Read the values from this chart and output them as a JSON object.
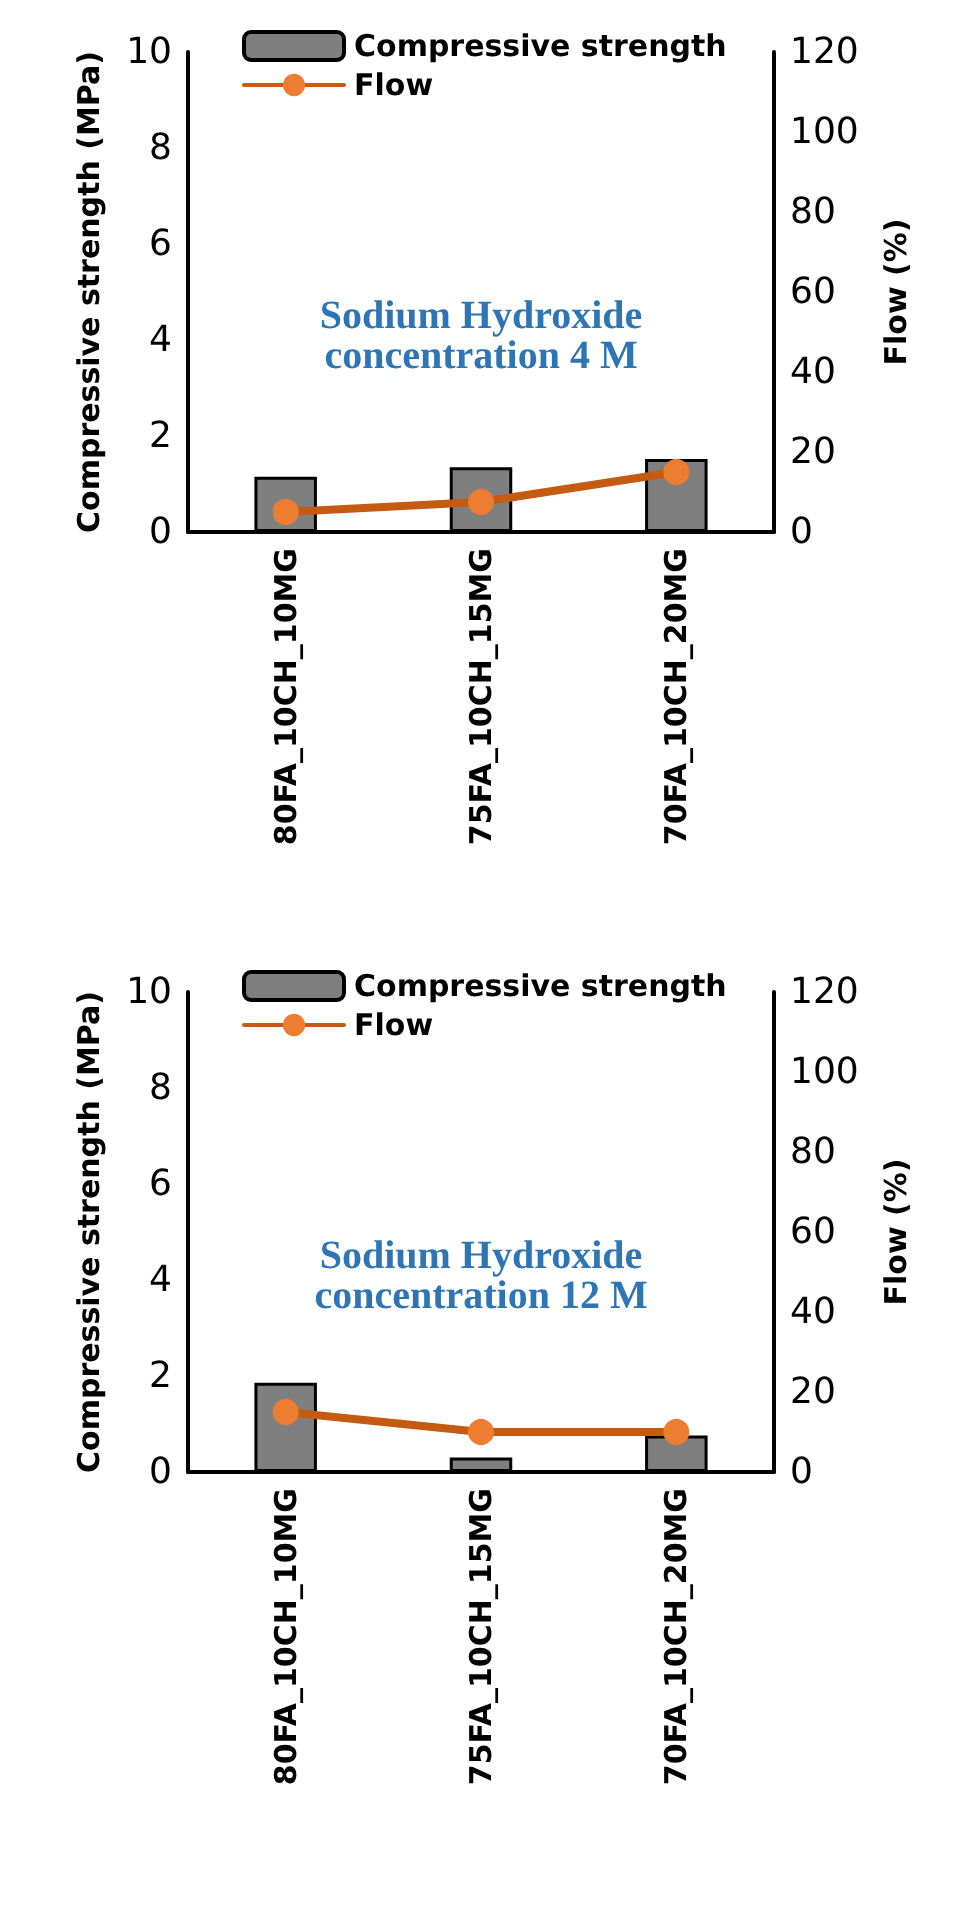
{
  "chart_data": [
    {
      "type": "bar",
      "categories": [
        "80FA_10CH_10MG",
        "75FA_10CH_15MG",
        "70FA_10CH_20MG"
      ],
      "ylabel": "Compressive strength (MPa)",
      "y2label": "Flow (%)",
      "ylim": [
        0,
        10
      ],
      "yticks": [
        0,
        2,
        4,
        6,
        8,
        10
      ],
      "y2lim": [
        0,
        120
      ],
      "y2ticks": [
        0,
        20,
        40,
        60,
        80,
        100,
        120
      ],
      "grid": false,
      "legend": "top",
      "marker": "circle",
      "annotations": [
        "Sodium Hydroxide\nconcentration 4 M"
      ],
      "series": [
        {
          "name": "Compressive strength",
          "color": "#7f7f7f",
          "values": [
            1.15,
            1.35,
            1.52
          ]
        },
        {
          "name": "Flow",
          "type": "line",
          "axis": "y2",
          "color": "#c55a11",
          "values": [
            5,
            7.5,
            15
          ]
        }
      ]
    },
    {
      "type": "bar",
      "categories": [
        "80FA_10CH_10MG",
        "75FA_10CH_15MG",
        "70FA_10CH_20MG"
      ],
      "ylabel": "Compressive strength (MPa)",
      "y2label": "Flow (%)",
      "ylim": [
        0,
        10
      ],
      "yticks": [
        0,
        2,
        4,
        6,
        8,
        10
      ],
      "y2lim": [
        0,
        120
      ],
      "y2ticks": [
        0,
        20,
        40,
        60,
        80,
        100,
        120
      ],
      "grid": false,
      "legend": "top",
      "marker": "circle",
      "annotations": [
        "Sodium Hydroxide\nconcentration 12 M"
      ],
      "series": [
        {
          "name": "Compressive strength",
          "color": "#7f7f7f",
          "values": [
            1.86,
            0.3,
            0.76
          ]
        },
        {
          "name": "Flow",
          "type": "line",
          "axis": "y2",
          "color": "#c55a11",
          "values": [
            15,
            10,
            10
          ]
        }
      ]
    }
  ]
}
